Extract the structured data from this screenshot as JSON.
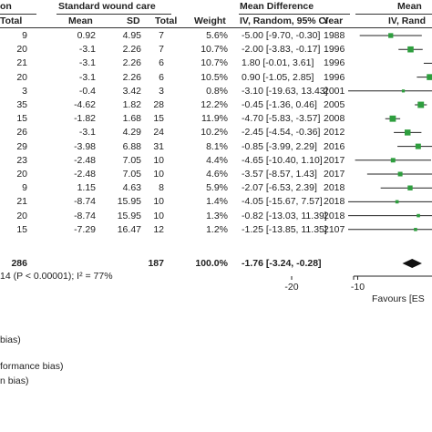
{
  "chart_data": {
    "type": "table",
    "header_top": {
      "group1": "on",
      "group2": "Standard wound care",
      "md": "Mean Difference",
      "plot": "Mean"
    },
    "header_sub": {
      "total": "Total",
      "mean": "Mean",
      "sd": "SD",
      "total2": "Total",
      "weight": "Weight",
      "md": "IV, Random, 95% CI",
      "year": "Year",
      "plot": "IV, Rand"
    },
    "rows": [
      {
        "total": "9",
        "mean": "0.92",
        "sd": "4.95",
        "total2": "7",
        "weight": "5.6%",
        "ci": "-5.00 [-9.70, -0.30]",
        "year": "1988",
        "md": -5.0,
        "lo": -9.7,
        "hi": -0.3
      },
      {
        "total": "20",
        "mean": "-3.1",
        "sd": "2.26",
        "total2": "7",
        "weight": "10.7%",
        "ci": "-2.00 [-3.83, -0.17]",
        "year": "1996",
        "md": -2.0,
        "lo": -3.83,
        "hi": -0.17
      },
      {
        "total": "21",
        "mean": "-3.1",
        "sd": "2.26",
        "total2": "6",
        "weight": "10.7%",
        "ci": "1.80 [-0.01, 3.61]",
        "year": "1996",
        "md": 1.8,
        "lo": -0.01,
        "hi": 3.61
      },
      {
        "total": "20",
        "mean": "-3.1",
        "sd": "2.26",
        "total2": "6",
        "weight": "10.5%",
        "ci": "0.90 [-1.05, 2.85]",
        "year": "1996",
        "md": 0.9,
        "lo": -1.05,
        "hi": 2.85
      },
      {
        "total": "3",
        "mean": "-0.4",
        "sd": "3.42",
        "total2": "3",
        "weight": "0.8%",
        "ci": "-3.10 [-19.63, 13.43]",
        "year": "2001",
        "md": -3.1,
        "lo": -19.63,
        "hi": 13.43
      },
      {
        "total": "35",
        "mean": "-4.62",
        "sd": "1.82",
        "total2": "28",
        "weight": "12.2%",
        "ci": "-0.45 [-1.36, 0.46]",
        "year": "2005",
        "md": -0.45,
        "lo": -1.36,
        "hi": 0.46
      },
      {
        "total": "15",
        "mean": "-1.82",
        "sd": "1.68",
        "total2": "15",
        "weight": "11.9%",
        "ci": "-4.70 [-5.83, -3.57]",
        "year": "2008",
        "md": -4.7,
        "lo": -5.83,
        "hi": -3.57
      },
      {
        "total": "26",
        "mean": "-3.1",
        "sd": "4.29",
        "total2": "24",
        "weight": "10.2%",
        "ci": "-2.45 [-4.54, -0.36]",
        "year": "2012",
        "md": -2.45,
        "lo": -4.54,
        "hi": -0.36
      },
      {
        "total": "29",
        "mean": "-3.98",
        "sd": "6.88",
        "total2": "31",
        "weight": "8.1%",
        "ci": "-0.85 [-3.99, 2.29]",
        "year": "2016",
        "md": -0.85,
        "lo": -3.99,
        "hi": 2.29
      },
      {
        "total": "23",
        "mean": "-2.48",
        "sd": "7.05",
        "total2": "10",
        "weight": "4.4%",
        "ci": "-4.65 [-10.40, 1.10]",
        "year": "2017",
        "md": -4.65,
        "lo": -10.4,
        "hi": 1.1
      },
      {
        "total": "20",
        "mean": "-2.48",
        "sd": "7.05",
        "total2": "10",
        "weight": "4.6%",
        "ci": "-3.57 [-8.57, 1.43]",
        "year": "2017",
        "md": -3.57,
        "lo": -8.57,
        "hi": 1.43
      },
      {
        "total": "9",
        "mean": "1.15",
        "sd": "4.63",
        "total2": "8",
        "weight": "5.9%",
        "ci": "-2.07 [-6.53, 2.39]",
        "year": "2018",
        "md": -2.07,
        "lo": -6.53,
        "hi": 2.39
      },
      {
        "total": "21",
        "mean": "-8.74",
        "sd": "15.95",
        "total2": "10",
        "weight": "1.4%",
        "ci": "-4.05 [-15.67, 7.57]",
        "year": "2018",
        "md": -4.05,
        "lo": -15.67,
        "hi": 7.57
      },
      {
        "total": "20",
        "mean": "-8.74",
        "sd": "15.95",
        "total2": "10",
        "weight": "1.3%",
        "ci": "-0.82 [-13.03, 11.39]",
        "year": "2018",
        "md": -0.82,
        "lo": -13.03,
        "hi": 11.39
      },
      {
        "total": "15",
        "mean": "-7.29",
        "sd": "16.47",
        "total2": "12",
        "weight": "1.2%",
        "ci": "-1.25 [-13.85, 11.35]",
        "year": "2107",
        "md": -1.25,
        "lo": -13.85,
        "hi": 11.35
      }
    ],
    "total_row": {
      "total": "286",
      "total2": "187",
      "weight": "100.0%",
      "ci": "-1.76 [-3.24, -0.28]",
      "md": -1.76,
      "lo": -3.24,
      "hi": -0.28
    },
    "heterogeneity": "14 (P < 0.00001); I² = 77%",
    "axis": {
      "ticks": [
        -20,
        -10
      ],
      "tick_labels": [
        "-20",
        "-10"
      ],
      "favours_label": "Favours [ES"
    },
    "footnotes": [
      "bias)",
      "formance bias)",
      "n bias)"
    ],
    "colors": {
      "marker": "#2e9e3e",
      "line": "#222222",
      "diamond": "#111111"
    }
  }
}
